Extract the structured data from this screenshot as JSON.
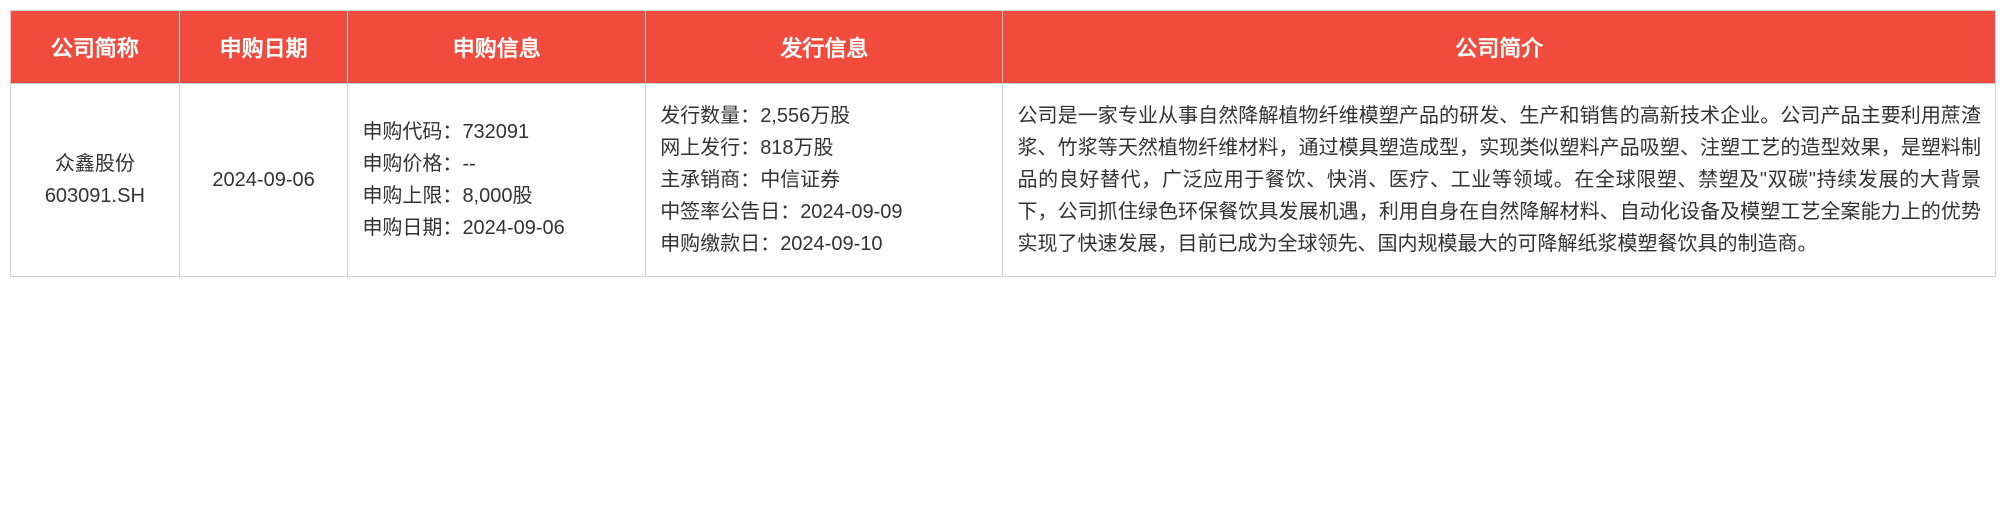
{
  "header": {
    "col1": "公司简称",
    "col2": "申购日期",
    "col3": "申购信息",
    "col4": "发行信息",
    "col5": "公司简介"
  },
  "row": {
    "company_name": "众鑫股份",
    "company_code": "603091.SH",
    "sub_date": "2024-09-06",
    "sub_code_label": "申购代码：",
    "sub_code_value": "732091",
    "sub_price_label": "申购价格：",
    "sub_price_value": "--",
    "sub_limit_label": "申购上限：",
    "sub_limit_value": "8,000股",
    "sub_date_label": "申购日期：",
    "sub_date_value": "2024-09-06",
    "issue_qty_label": "发行数量：",
    "issue_qty_value": "2,556万股",
    "issue_online_label": "网上发行：",
    "issue_online_value": "818万股",
    "issue_underwriter_label": "主承销商：",
    "issue_underwriter_value": "中信证券",
    "issue_lottery_label": "中签率公告日：",
    "issue_lottery_value": "2024-09-09",
    "issue_pay_label": "申购缴款日：",
    "issue_pay_value": "2024-09-10",
    "description": "公司是一家专业从事自然降解植物纤维模塑产品的研发、生产和销售的高新技术企业。公司产品主要利用蔗渣浆、竹浆等天然植物纤维材料，通过模具塑造成型，实现类似塑料产品吸塑、注塑工艺的造型效果，是塑料制品的良好替代，广泛应用于餐饮、快消、医疗、工业等领域。在全球限塑、禁塑及\"双碳\"持续发展的大背景下，公司抓住绿色环保餐饮具发展机遇，利用自身在自然降解材料、自动化设备及模塑工艺全案能力上的优势实现了快速发展，目前已成为全球领先、国内规模最大的可降解纸浆模塑餐饮具的制造商。"
  },
  "style": {
    "header_bg": "#f04b3d",
    "header_text": "#ffffff",
    "cell_text": "#333333",
    "border": "#d0d0d0",
    "font_size_header": 22,
    "font_size_cell": 20
  }
}
